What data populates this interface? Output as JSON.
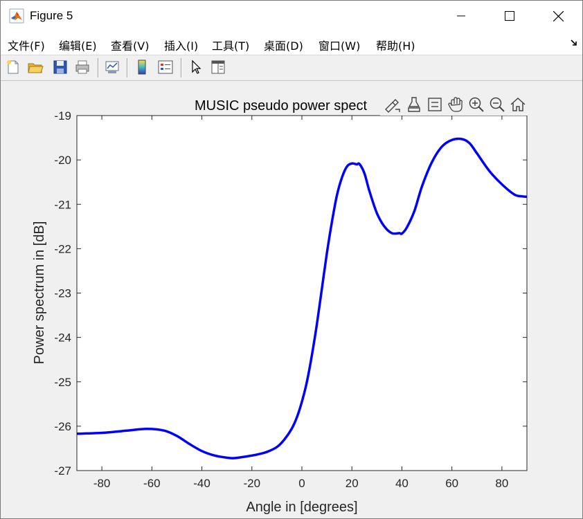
{
  "window": {
    "title": "Figure 5",
    "controls": {
      "minimize": "minimize",
      "maximize": "maximize",
      "close": "close"
    }
  },
  "menu": {
    "items": [
      "文件(F)",
      "编辑(E)",
      "查看(V)",
      "插入(I)",
      "工具(T)",
      "桌面(D)",
      "窗口(W)",
      "帮助(H)"
    ]
  },
  "toolbar": {
    "icons": [
      "new-figure-icon",
      "open-file-icon",
      "save-icon",
      "print-icon",
      "link-plot-icon",
      "colorbar-icon",
      "legend-icon",
      "edit-plot-arrow-icon",
      "property-inspector-icon"
    ]
  },
  "axes_toolbar": {
    "icons": [
      "brush-export-icon",
      "data-cursor-icon",
      "legend-toggle-icon",
      "pan-hand-icon",
      "zoom-in-icon",
      "zoom-out-icon",
      "restore-view-home-icon"
    ]
  },
  "chart_data": {
    "type": "line",
    "title": "MUSIC pseudo power spect",
    "xlabel": "Angle in [degrees]",
    "ylabel": "Power spectrum in [dB]",
    "xlim": [
      -90,
      90
    ],
    "ylim": [
      -27,
      -19
    ],
    "xticks": [
      -80,
      -60,
      -40,
      -20,
      0,
      20,
      40,
      60,
      80
    ],
    "yticks": [
      -19,
      -20,
      -21,
      -22,
      -23,
      -24,
      -25,
      -26,
      -27
    ],
    "grid": false,
    "line_color": "#0000ff",
    "series": [
      {
        "x": [
          -90,
          -80,
          -70,
          -62,
          -55,
          -50,
          -45,
          -40,
          -35,
          -30,
          -27,
          -22,
          -18,
          -14,
          -10,
          -7,
          -4,
          -2,
          0,
          2,
          4,
          6,
          8,
          10,
          12,
          14,
          16,
          18,
          20,
          22,
          23,
          25,
          27,
          30,
          33,
          36,
          39,
          40,
          42,
          45,
          48,
          52,
          56,
          60,
          64,
          67,
          70,
          75,
          80,
          85,
          88,
          90
        ],
        "y": [
          -26.17,
          -26.15,
          -26.1,
          -26.06,
          -26.1,
          -26.22,
          -26.4,
          -26.56,
          -26.66,
          -26.71,
          -26.72,
          -26.68,
          -26.64,
          -26.58,
          -26.47,
          -26.3,
          -26.05,
          -25.8,
          -25.45,
          -25.0,
          -24.4,
          -23.7,
          -22.9,
          -22.1,
          -21.4,
          -20.8,
          -20.4,
          -20.15,
          -20.08,
          -20.1,
          -20.09,
          -20.3,
          -20.7,
          -21.2,
          -21.5,
          -21.65,
          -21.65,
          -21.66,
          -21.52,
          -21.15,
          -20.6,
          -20.05,
          -19.7,
          -19.55,
          -19.53,
          -19.62,
          -19.85,
          -20.25,
          -20.55,
          -20.78,
          -20.82,
          -20.83
        ]
      }
    ]
  }
}
